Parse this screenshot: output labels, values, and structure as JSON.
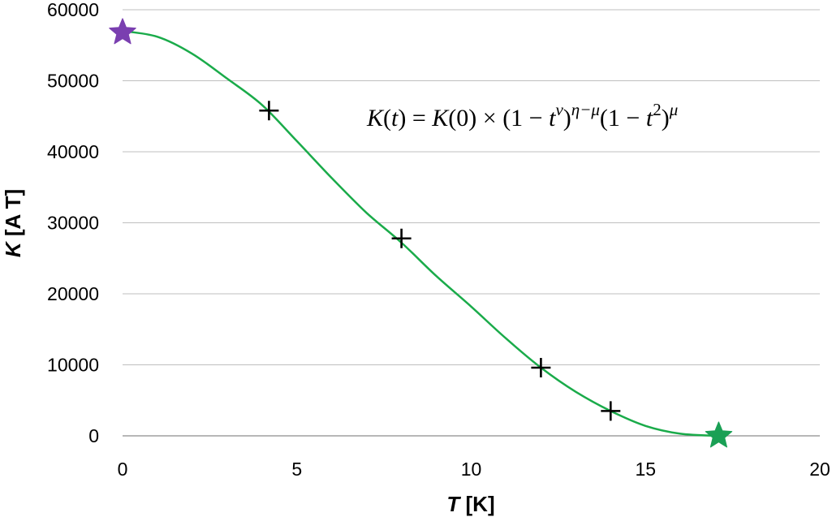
{
  "chart_data": {
    "type": "scatter",
    "xlabel_italic": "T",
    "xlabel_rest": " [K]",
    "ylabel_italic": "K",
    "ylabel_rest": " [A T]",
    "xlim": [
      0,
      20
    ],
    "ylim": [
      0,
      60000
    ],
    "xticks": [
      0,
      5,
      10,
      15,
      20
    ],
    "yticks": [
      0,
      10000,
      20000,
      30000,
      40000,
      50000,
      60000
    ],
    "grid": "horizontal",
    "colors": {
      "fit": "#1aab4a",
      "start_star": "#7a3fb0",
      "end_star": "#1aa055",
      "markers": "#000000",
      "grid": "#bfbfbf"
    },
    "series": [
      {
        "marker": "plus",
        "x": [
          4.2,
          8.0,
          12.0,
          14.0
        ],
        "y": [
          45800,
          27800,
          9600,
          3500
        ]
      },
      {
        "marker": "star",
        "x": [
          0,
          17.1
        ],
        "y": [
          56800,
          0
        ]
      },
      {
        "type": "line",
        "x": [
          0,
          1,
          2,
          3,
          4,
          5,
          6,
          7,
          8,
          9,
          10,
          11,
          12,
          13,
          14,
          15,
          16,
          17.1
        ],
        "y": [
          57000,
          56200,
          53800,
          50300,
          46600,
          41500,
          36300,
          31400,
          27200,
          22500,
          18200,
          13700,
          9600,
          6200,
          3500,
          1400,
          300,
          0
        ]
      }
    ],
    "annotation": {
      "parts": [
        "K",
        "(",
        "t",
        ") = ",
        "K",
        "(0) × (1 − ",
        "t",
        "ν",
        ")",
        "η−μ",
        "(1 − ",
        "t",
        "2",
        ")",
        "μ"
      ]
    }
  }
}
